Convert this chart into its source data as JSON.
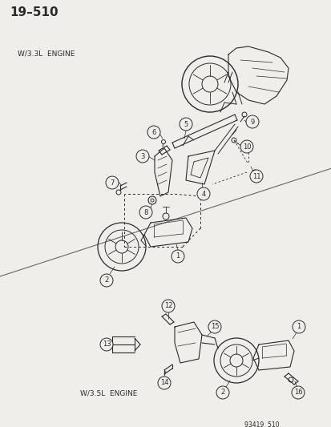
{
  "title": "19–510",
  "bg_color": "#f0eeeb",
  "title_fontsize": 11,
  "label_33L": "W/3.3L  ENGINE",
  "label_35L": "W/3.5L  ENGINE",
  "watermark": "93419  510",
  "fig_width": 4.14,
  "fig_height": 5.33,
  "dpi": 100,
  "line_color": "#2a2a2a",
  "callout_r": 8
}
